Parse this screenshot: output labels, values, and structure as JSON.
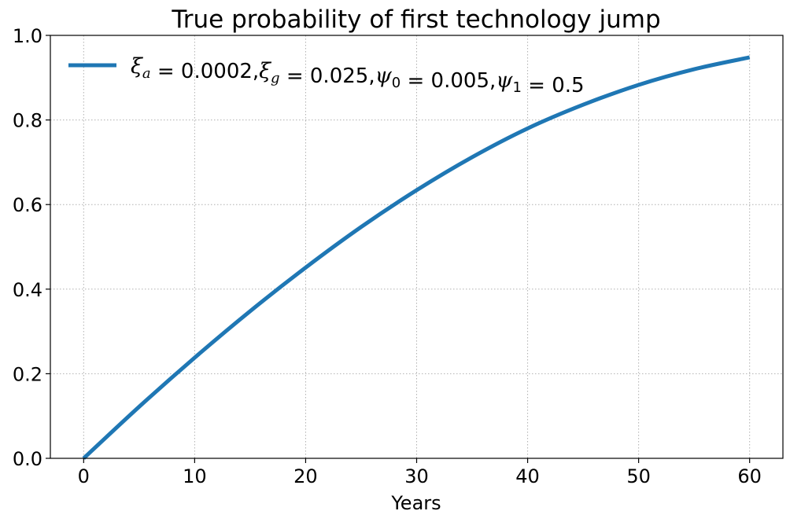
{
  "chart_data": {
    "type": "line",
    "title": "True probability of first technology jump",
    "xlabel": "Years",
    "ylabel": "",
    "xlim": [
      -3,
      63
    ],
    "ylim": [
      0,
      1.0
    ],
    "x_ticks": [
      0,
      10,
      20,
      30,
      40,
      50,
      60
    ],
    "y_ticks": [
      0.0,
      0.2,
      0.4,
      0.6,
      0.8,
      1.0
    ],
    "x_tick_labels": [
      "0",
      "10",
      "20",
      "30",
      "40",
      "50",
      "60"
    ],
    "y_tick_labels": [
      "0.0",
      "0.2",
      "0.4",
      "0.6",
      "0.8",
      "1.0"
    ],
    "grid": true,
    "legend_position": "top-left",
    "series": [
      {
        "name": "ξa = 0.0002,ξg = 0.025,ψ0 = 0.005,ψ1 = 0.5",
        "color": "#1f77b4",
        "x": [
          0,
          5,
          10,
          15,
          20,
          25,
          30,
          35,
          40,
          45,
          50,
          55,
          60
        ],
        "y": [
          0.0,
          0.122,
          0.238,
          0.348,
          0.451,
          0.547,
          0.634,
          0.712,
          0.78,
          0.836,
          0.883,
          0.92,
          0.948
        ]
      }
    ]
  },
  "legend": {
    "entries": [
      {
        "parts": [
          {
            "text": "ξ",
            "style": "math"
          },
          {
            "text": "a",
            "style": "sub"
          },
          {
            "text": " = 0.0002,",
            "style": "normal"
          },
          {
            "text": "ξ",
            "style": "math"
          },
          {
            "text": "g",
            "style": "sub"
          },
          {
            "text": " = 0.025,",
            "style": "normal"
          },
          {
            "text": "ψ",
            "style": "math"
          },
          {
            "text": "0",
            "style": "sub-upright"
          },
          {
            "text": " = 0.005,",
            "style": "normal"
          },
          {
            "text": "ψ",
            "style": "math"
          },
          {
            "text": "1",
            "style": "sub-upright"
          },
          {
            "text": " = 0.5",
            "style": "normal"
          }
        ]
      }
    ]
  }
}
